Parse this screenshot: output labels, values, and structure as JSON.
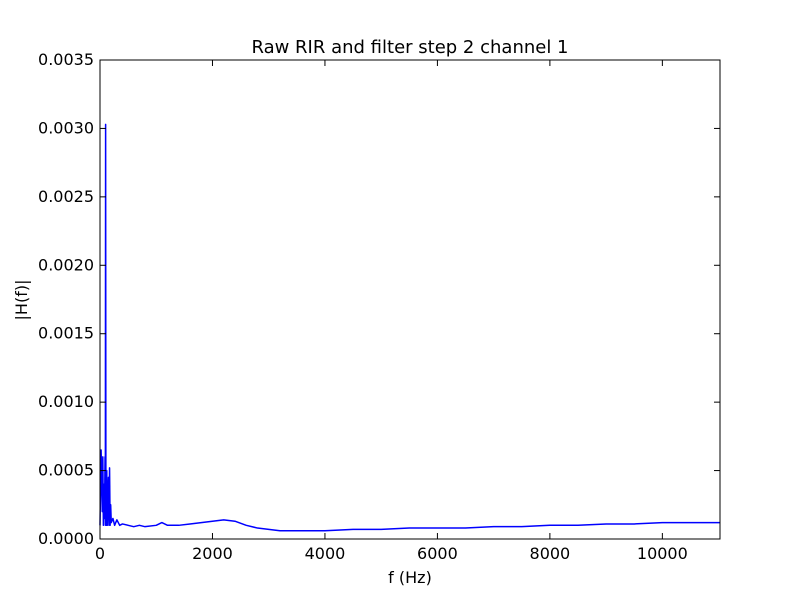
{
  "chart_data": {
    "type": "line",
    "title": "Raw RIR and filter step 2 channel 1",
    "xlabel": "f (Hz)",
    "ylabel": "|H(f)|",
    "xlim": [
      0,
      11025
    ],
    "ylim": [
      0,
      0.0035
    ],
    "xticks": [
      0,
      2000,
      4000,
      6000,
      8000,
      10000
    ],
    "xtick_labels": [
      "0",
      "2000",
      "4000",
      "6000",
      "8000",
      "10000"
    ],
    "yticks": [
      0,
      0.0005,
      0.001,
      0.0015,
      0.002,
      0.0025,
      0.003,
      0.0035
    ],
    "ytick_labels": [
      "0.0000",
      "0.0005",
      "0.0010",
      "0.0015",
      "0.0020",
      "0.0025",
      "0.0030",
      "0.0035"
    ],
    "grid": false,
    "series": [
      {
        "color": "#0000ff",
        "x": [
          0,
          20,
          40,
          50,
          60,
          70,
          80,
          90,
          95,
          100,
          105,
          110,
          120,
          130,
          150,
          160,
          170,
          180,
          190,
          200,
          230,
          260,
          300,
          350,
          400,
          500,
          600,
          700,
          800,
          1000,
          1100,
          1200,
          1400,
          1600,
          1800,
          2000,
          2200,
          2400,
          2600,
          2800,
          3000,
          3200,
          3400,
          3600,
          4000,
          4500,
          5000,
          5500,
          6000,
          6500,
          7000,
          7500,
          8000,
          8500,
          9000,
          9500,
          10000,
          10500,
          11025
        ],
        "y": [
          0.0001,
          0.00065,
          0.0002,
          0.0006,
          0.0001,
          0.0004,
          0.00015,
          0.0006,
          0.0001,
          0.00303,
          0.0002,
          0.0001,
          0.0005,
          0.0001,
          0.00045,
          0.0001,
          0.00052,
          0.0001,
          0.00025,
          0.00012,
          0.00015,
          0.0001,
          0.00014,
          0.0001,
          0.00011,
          0.0001,
          9e-05,
          0.0001,
          9e-05,
          0.0001,
          0.00012,
          0.0001,
          0.0001,
          0.00011,
          0.00012,
          0.00013,
          0.00014,
          0.00013,
          0.0001,
          8e-05,
          7e-05,
          6e-05,
          6e-05,
          6e-05,
          6e-05,
          7e-05,
          7e-05,
          8e-05,
          8e-05,
          8e-05,
          9e-05,
          9e-05,
          0.0001,
          0.0001,
          0.00011,
          0.00011,
          0.00012,
          0.00012,
          0.00012
        ]
      }
    ]
  }
}
